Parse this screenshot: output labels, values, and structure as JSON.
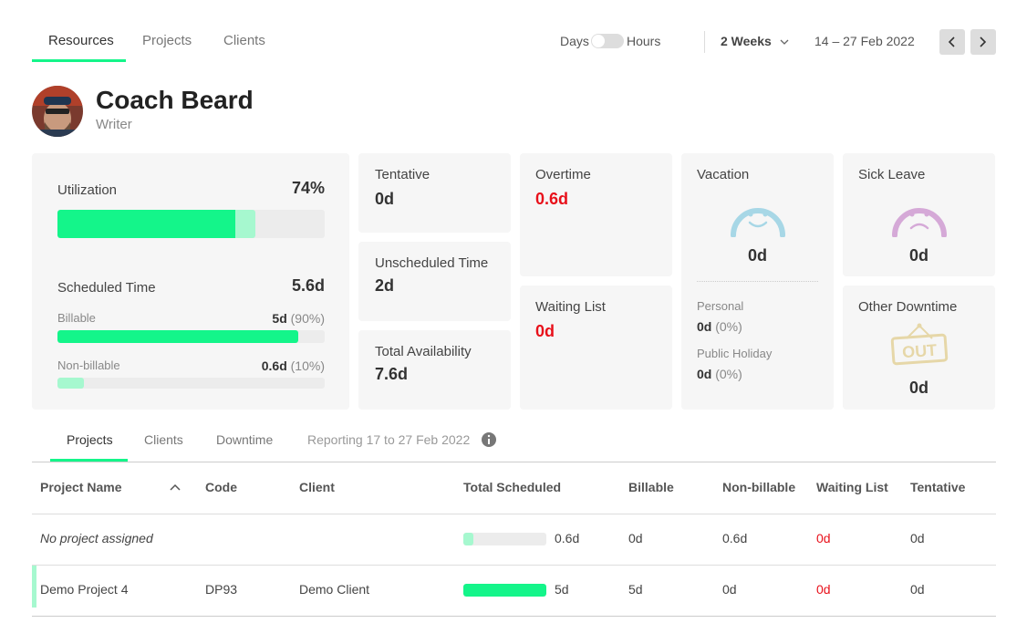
{
  "nav": {
    "tabs": [
      "Resources",
      "Projects",
      "Clients"
    ]
  },
  "toolbar": {
    "toggle_left": "Days",
    "toggle_right": "Hours",
    "range": "2 Weeks",
    "dates": "14 – 27 Feb 2022"
  },
  "person": {
    "name": "Coach Beard",
    "role": "Writer"
  },
  "utilization": {
    "label": "Utilization",
    "value": "74%",
    "scheduled_label": "Scheduled Time",
    "scheduled_value": "5.6d",
    "billable": {
      "label": "Billable",
      "value": "5d",
      "share": "(90%)"
    },
    "non_billable": {
      "label": "Non-billable",
      "value": "0.6d",
      "share": "(10%)"
    }
  },
  "cards": {
    "tentative": {
      "label": "Tentative",
      "value": "0d"
    },
    "unscheduled": {
      "label": "Unscheduled Time",
      "value": "2d"
    },
    "total_availability": {
      "label": "Total Availability",
      "value": "7.6d"
    },
    "overtime": {
      "label": "Overtime",
      "value": "0.6d"
    },
    "waiting_list": {
      "label": "Waiting List",
      "value": "0d"
    },
    "vacation": {
      "label": "Vacation",
      "value": "0d",
      "personal": {
        "label": "Personal",
        "value": "0d",
        "share": "(0%)"
      },
      "public_holiday": {
        "label": "Public Holiday",
        "value": "0d",
        "share": "(0%)"
      }
    },
    "sick_leave": {
      "label": "Sick Leave",
      "value": "0d"
    },
    "other_downtime": {
      "label": "Other Downtime",
      "value": "0d"
    }
  },
  "sub_tabs": {
    "tabs": [
      "Projects",
      "Clients",
      "Downtime"
    ],
    "reporting": "Reporting 17 to 27 Feb 2022"
  },
  "table": {
    "columns": [
      "Project Name",
      "Code",
      "Client",
      "Total Scheduled",
      "Billable",
      "Non-billable",
      "Waiting List",
      "Tentative"
    ],
    "rows": [
      {
        "name": "No project assigned",
        "total": "0.6d",
        "billable": "0d",
        "non_billable": "0.6d",
        "waiting": "0d",
        "tentative": "0d"
      },
      {
        "name": "Demo Project 4",
        "code": "DP93",
        "client": "Demo Client",
        "total": "5d",
        "billable": "5d",
        "non_billable": "0d",
        "waiting": "0d",
        "tentative": "0d"
      }
    ]
  }
}
